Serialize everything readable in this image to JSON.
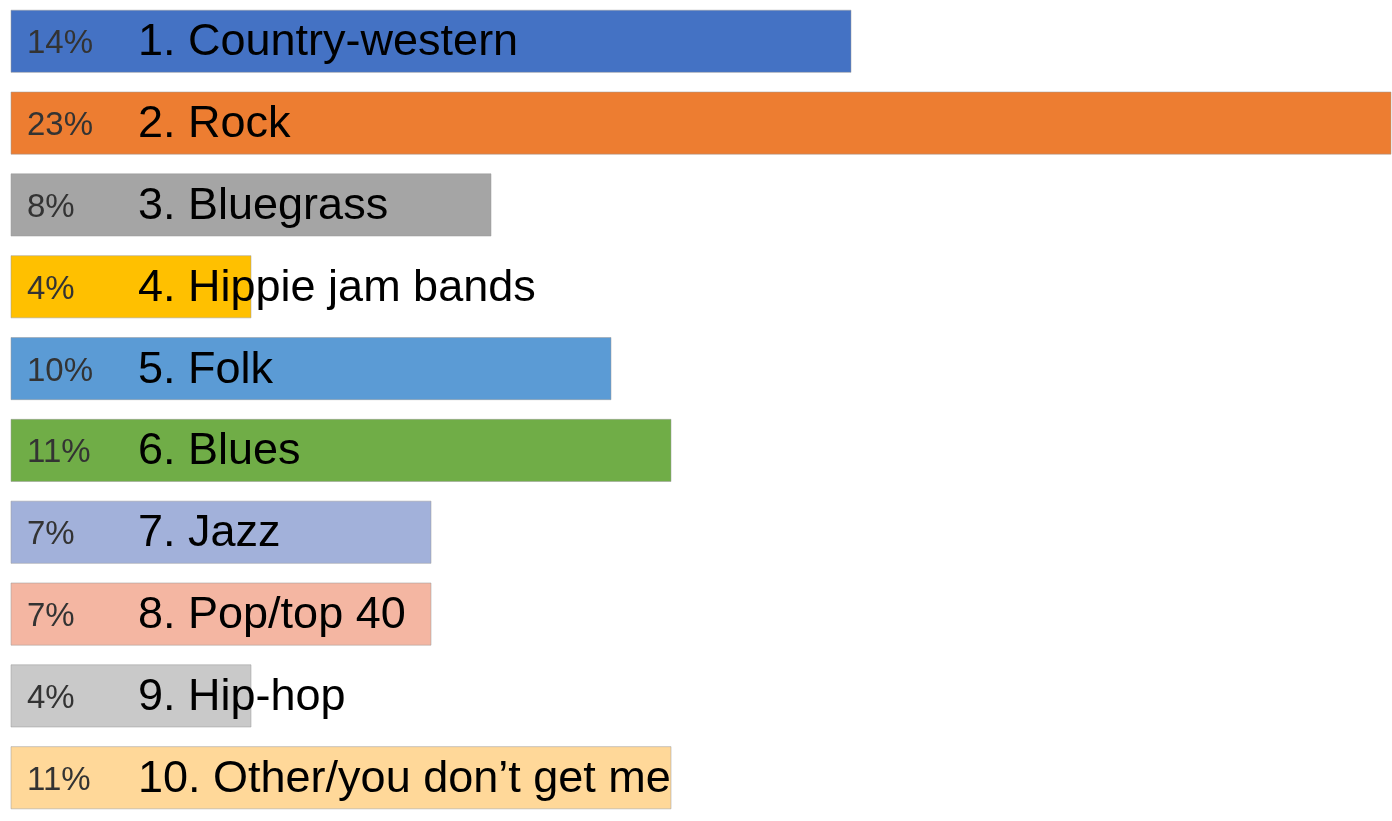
{
  "chart_data": {
    "type": "bar",
    "orientation": "horizontal",
    "categories": [
      "1. Country-western",
      "2. Rock",
      "3. Bluegrass",
      "4. Hippie jam bands",
      "5. Folk",
      "6. Blues",
      "7. Jazz",
      "8. Pop/top 40",
      "9. Hip-hop",
      "10. Other/you don’t get me"
    ],
    "values": [
      14,
      23,
      8,
      4,
      10,
      11,
      7,
      7,
      4,
      11
    ],
    "value_labels": [
      "14%",
      "23%",
      "8%",
      "4%",
      "10%",
      "11%",
      "7%",
      "7%",
      "4%",
      "11%"
    ],
    "colors": [
      "#4472c4",
      "#ed7d31",
      "#a5a5a5",
      "#ffc000",
      "#5b9bd5",
      "#70ad47",
      "#a2b1da",
      "#f4b6a2",
      "#c9c9c9",
      "#ffd899"
    ]
  }
}
